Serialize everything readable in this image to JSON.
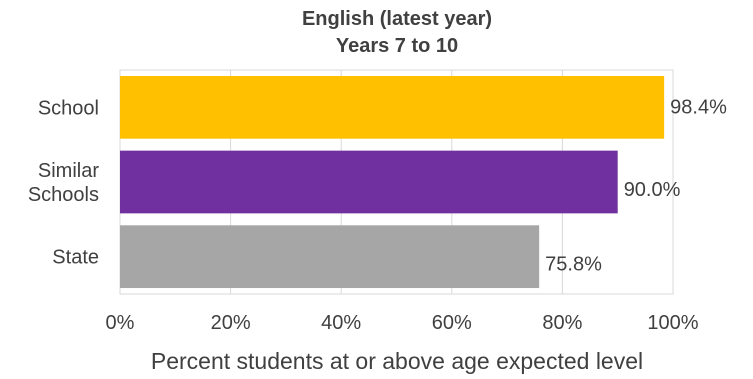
{
  "chart_data": {
    "type": "bar",
    "orientation": "horizontal",
    "title": "English (latest year)",
    "subtitle": "Years 7 to 10",
    "categories": [
      {
        "lines": [
          "School"
        ]
      },
      {
        "lines": [
          "Similar",
          "Schools"
        ]
      },
      {
        "lines": [
          "State"
        ]
      }
    ],
    "values": [
      98.4,
      90.0,
      75.8
    ],
    "value_labels": [
      "98.4%",
      "90.0%",
      "75.8%"
    ],
    "bar_colors": [
      "#FFC000",
      "#7030A0",
      "#A6A6A6"
    ],
    "xlabel": "Percent students at or above age expected level",
    "ylabel": "",
    "xlim": [
      0,
      100
    ],
    "xticks": [
      "0%",
      "20%",
      "40%",
      "60%",
      "80%",
      "100%"
    ],
    "grid": true,
    "legend": "none"
  }
}
